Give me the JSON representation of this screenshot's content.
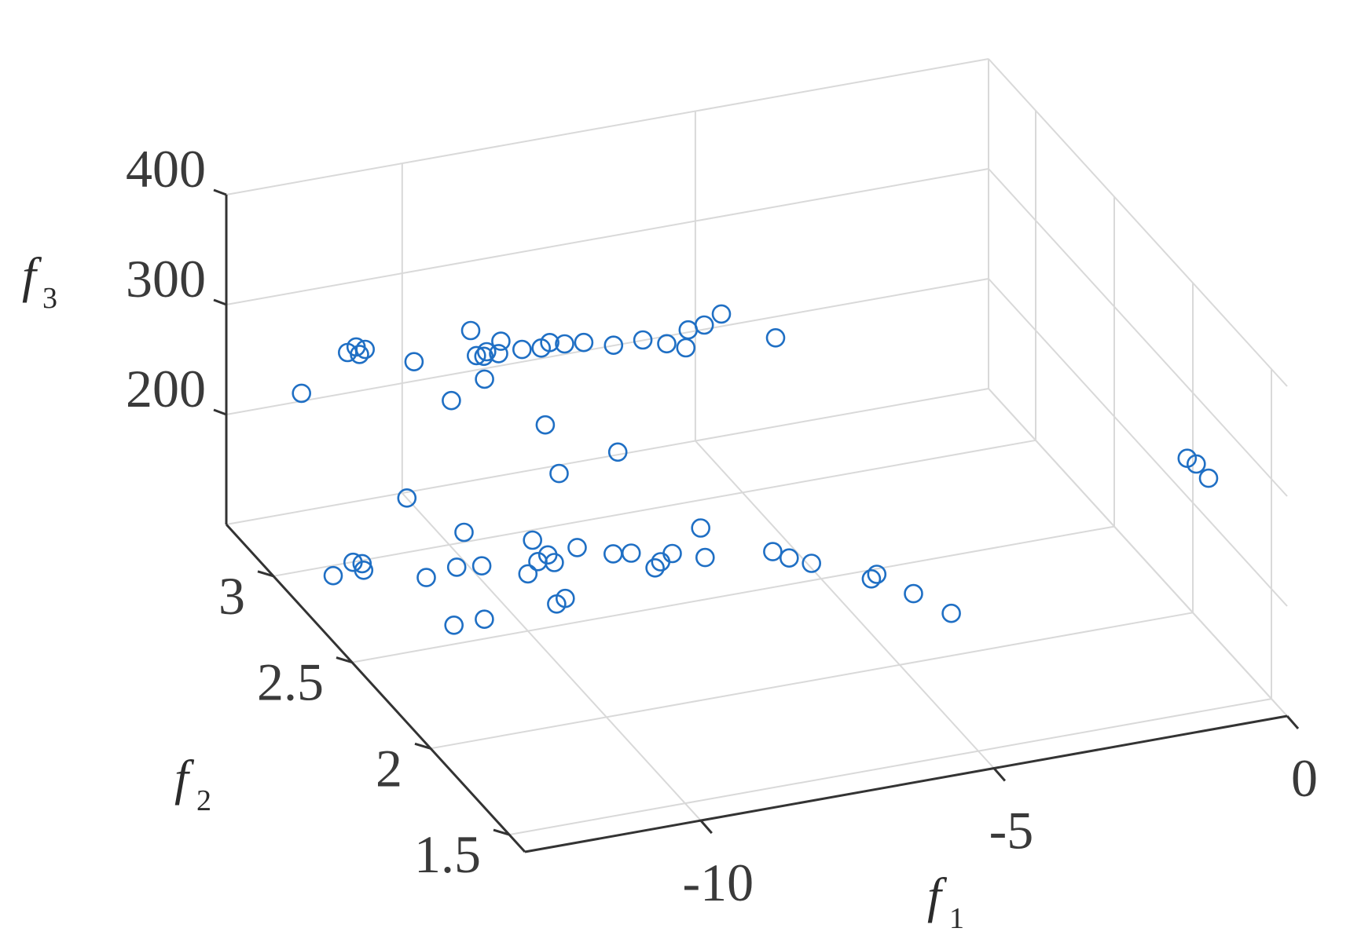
{
  "chart_data": {
    "type": "scatter",
    "projection": "3d",
    "title": "",
    "marker": "open-circle",
    "color": "#1f6fc4",
    "grid": true,
    "axes": {
      "x": {
        "label": "f",
        "label_sub": "1",
        "range": [
          -13,
          0
        ],
        "ticks": [
          -10,
          -5,
          0
        ],
        "tick_labels": [
          "-10",
          "-5",
          "0"
        ]
      },
      "y": {
        "label": "f",
        "label_sub": "2",
        "range": [
          1.4,
          3.3
        ],
        "ticks": [
          1.5,
          2,
          2.5,
          3
        ],
        "tick_labels": [
          "1.5",
          "2",
          "2.5",
          "3"
        ]
      },
      "z": {
        "label": "f",
        "label_sub": "3",
        "range": [
          100,
          400
        ],
        "ticks": [
          200,
          300,
          400
        ],
        "tick_labels": [
          "200",
          "300",
          "400"
        ]
      }
    },
    "points": [
      [
        -13.0,
        2.62,
        160
      ],
      [
        -12.5,
        2.68,
        158
      ],
      [
        -12.48,
        2.62,
        160
      ],
      [
        -12.4,
        2.66,
        159
      ],
      [
        -11.6,
        2.55,
        156
      ],
      [
        -11.45,
        2.43,
        130
      ],
      [
        -11.1,
        2.86,
        175
      ],
      [
        -11.0,
        2.58,
        155
      ],
      [
        -10.85,
        2.46,
        125
      ],
      [
        -10.6,
        2.57,
        154
      ],
      [
        -10.5,
        2.72,
        160
      ],
      [
        -10.0,
        2.5,
        152
      ],
      [
        -9.6,
        2.62,
        160
      ],
      [
        -9.5,
        2.56,
        155
      ],
      [
        -10.1,
        2.28,
        160
      ],
      [
        -9.9,
        2.3,
        160
      ],
      [
        -9.75,
        2.53,
        156
      ],
      [
        -9.55,
        2.5,
        158
      ],
      [
        -9.0,
        2.56,
        157
      ],
      [
        -8.6,
        2.48,
        160
      ],
      [
        -8.4,
        2.44,
        165
      ],
      [
        -7.0,
        2.52,
        162
      ],
      [
        -7.7,
        2.44,
        158
      ],
      [
        -7.95,
        2.42,
        156
      ],
      [
        -8.1,
        2.4,
        155
      ],
      [
        -7.3,
        2.38,
        160
      ],
      [
        -6.2,
        2.36,
        158
      ],
      [
        -6.0,
        2.33,
        155
      ],
      [
        -5.7,
        2.3,
        152
      ],
      [
        -4.8,
        2.22,
        146
      ],
      [
        -5.0,
        2.18,
        150
      ],
      [
        -4.55,
        2.08,
        148
      ],
      [
        -4.2,
        1.97,
        144
      ],
      [
        -12.2,
        3.12,
        240
      ],
      [
        -11.2,
        3.2,
        255
      ],
      [
        -11.05,
        3.18,
        255
      ],
      [
        -10.9,
        3.2,
        255
      ],
      [
        -11.0,
        3.22,
        255
      ],
      [
        -10.2,
        3.15,
        245
      ],
      [
        -9.35,
        3.07,
        255
      ],
      [
        -9.25,
        3.06,
        255
      ],
      [
        -9.15,
        3.08,
        255
      ],
      [
        -9.0,
        3.06,
        255
      ],
      [
        -8.8,
        3.12,
        255
      ],
      [
        -8.6,
        3.06,
        255
      ],
      [
        -8.3,
        3.05,
        255
      ],
      [
        -8.1,
        3.07,
        255
      ],
      [
        -7.9,
        3.05,
        255
      ],
      [
        -7.6,
        3.04,
        255
      ],
      [
        -7.2,
        3.0,
        255
      ],
      [
        -6.7,
        3.0,
        255
      ],
      [
        -6.4,
        2.96,
        255
      ],
      [
        -6.1,
        2.95,
        250
      ],
      [
        -5.9,
        3.01,
        255
      ],
      [
        -5.6,
        3.02,
        255
      ],
      [
        -5.2,
        3.06,
        255
      ],
      [
        -4.65,
        2.92,
        250
      ],
      [
        -10.1,
        2.95,
        240
      ],
      [
        -9.1,
        3.2,
        255
      ],
      [
        -9.4,
        3.0,
        245
      ],
      [
        -8.2,
        2.6,
        230
      ],
      [
        -8.9,
        2.8,
        230
      ],
      [
        -9.2,
        2.6,
        220
      ],
      [
        -0.15,
        1.98,
        245
      ],
      [
        -0.05,
        1.96,
        242
      ],
      [
        0.0,
        1.9,
        238
      ]
    ]
  }
}
